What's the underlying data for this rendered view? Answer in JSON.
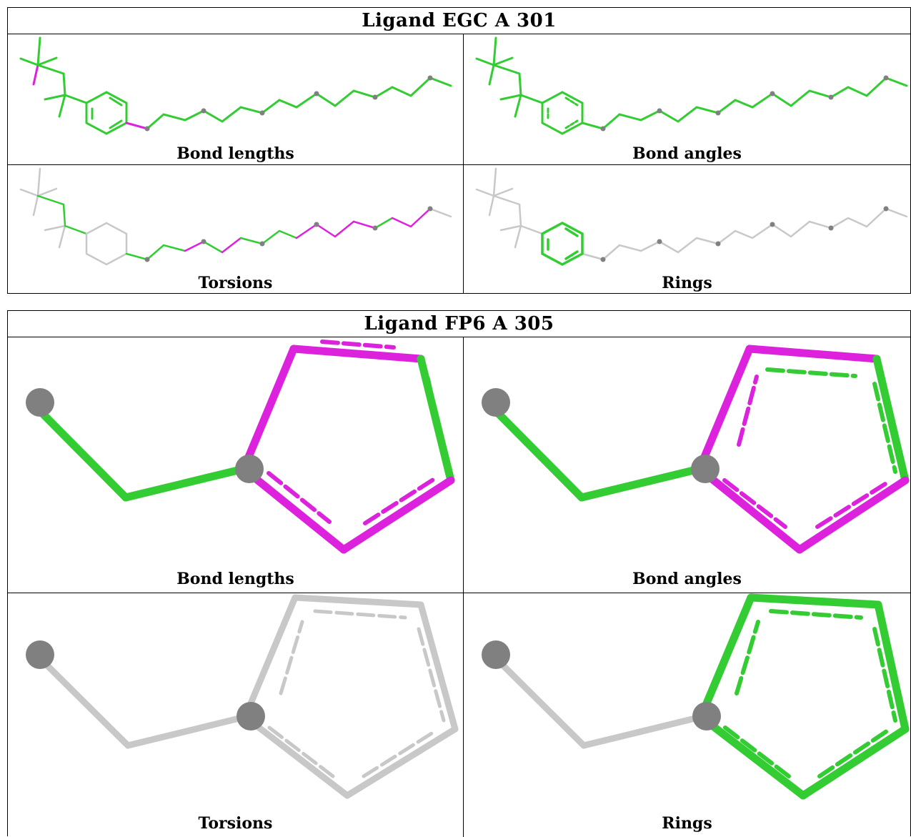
{
  "colors": {
    "green": "#33cc33",
    "magenta": "#dd22dd",
    "grey": "#c8c8c8",
    "atom": "#808080"
  },
  "blocks": [
    {
      "title": "Ligand EGC A 301",
      "panels": [
        {
          "caption": "Bond lengths"
        },
        {
          "caption": "Bond angles"
        },
        {
          "caption": "Torsions"
        },
        {
          "caption": "Rings"
        }
      ]
    },
    {
      "title": "Ligand FP6 A 305",
      "panels": [
        {
          "caption": "Bond lengths"
        },
        {
          "caption": "Bond angles"
        },
        {
          "caption": "Torsions"
        },
        {
          "caption": "Rings"
        }
      ]
    }
  ]
}
